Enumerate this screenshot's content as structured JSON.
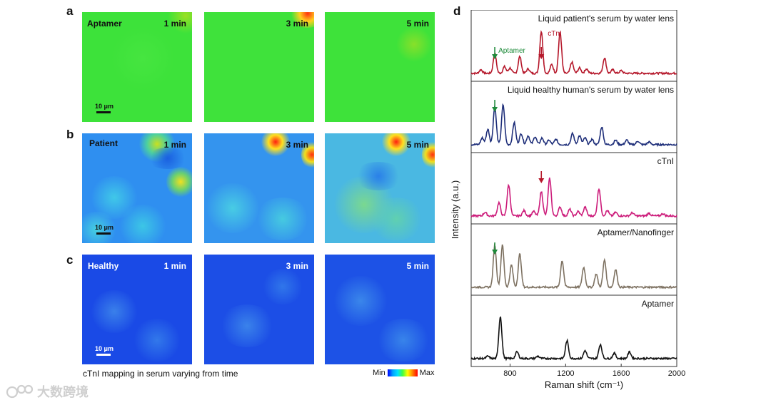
{
  "panels": {
    "a": {
      "letter": "a",
      "row_label": "Aptamer"
    },
    "b": {
      "letter": "b",
      "row_label": "Patient"
    },
    "c": {
      "letter": "c",
      "row_label": "Healthy"
    },
    "d": {
      "letter": "d"
    }
  },
  "times": [
    "1 min",
    "3 min",
    "5 min"
  ],
  "scale_bar": "10 μm",
  "caption": "cTnI mapping in serum varying from time",
  "colorbar": {
    "min_label": "Min",
    "max_label": "Max"
  },
  "watermark": "大数跨境",
  "colors": {
    "crimson": "#b5172a",
    "navy": "#1f2f7a",
    "magenta": "#cc1b7a",
    "taupe": "#7e7262",
    "black": "#111111",
    "green_arrow": "#1e8a3a"
  },
  "chart_data": {
    "type": "line",
    "xlabel": "Raman shift (cm⁻¹)",
    "ylabel": "Intensity (a.u.)",
    "xlim": [
      520,
      2000
    ],
    "xticks": [
      800,
      1200,
      1600,
      2000
    ],
    "series": [
      {
        "name": "Liquid patient's serum by water lens",
        "color": "#b5172a",
        "peaks": [
          [
            590,
            0.08
          ],
          [
            690,
            0.45
          ],
          [
            760,
            0.15
          ],
          [
            800,
            0.12
          ],
          [
            870,
            0.38
          ],
          [
            930,
            0.1
          ],
          [
            1025,
            0.95
          ],
          [
            1100,
            0.2
          ],
          [
            1160,
            0.93
          ],
          [
            1245,
            0.25
          ],
          [
            1300,
            0.12
          ],
          [
            1350,
            0.1
          ],
          [
            1480,
            0.35
          ],
          [
            1540,
            0.08
          ],
          [
            1600,
            0.06
          ]
        ],
        "annotations": [
          {
            "text": "Aptamer",
            "x": 690,
            "arrow": "green"
          },
          {
            "text": "cTnI",
            "x": 1025,
            "arrow": "crimson"
          }
        ]
      },
      {
        "name": "Liquid healthy human's serum by water lens",
        "color": "#1f2f7a",
        "peaks": [
          [
            600,
            0.15
          ],
          [
            640,
            0.35
          ],
          [
            690,
            0.85
          ],
          [
            750,
            0.9
          ],
          [
            830,
            0.5
          ],
          [
            880,
            0.25
          ],
          [
            930,
            0.2
          ],
          [
            980,
            0.18
          ],
          [
            1030,
            0.15
          ],
          [
            1080,
            0.1
          ],
          [
            1130,
            0.12
          ],
          [
            1250,
            0.25
          ],
          [
            1300,
            0.2
          ],
          [
            1340,
            0.15
          ],
          [
            1390,
            0.12
          ],
          [
            1460,
            0.4
          ],
          [
            1560,
            0.1
          ],
          [
            1640,
            0.1
          ],
          [
            1720,
            0.08
          ],
          [
            1800,
            0.06
          ]
        ],
        "annotations": [
          {
            "text": "",
            "x": 690,
            "arrow": "green"
          }
        ]
      },
      {
        "name": "cTnI",
        "color": "#cc1b7a",
        "peaks": [
          [
            620,
            0.08
          ],
          [
            720,
            0.3
          ],
          [
            790,
            0.7
          ],
          [
            900,
            0.12
          ],
          [
            970,
            0.1
          ],
          [
            1025,
            0.55
          ],
          [
            1085,
            0.85
          ],
          [
            1160,
            0.2
          ],
          [
            1230,
            0.15
          ],
          [
            1290,
            0.1
          ],
          [
            1340,
            0.2
          ],
          [
            1440,
            0.62
          ],
          [
            1500,
            0.12
          ],
          [
            1560,
            0.08
          ],
          [
            1680,
            0.07
          ],
          [
            1800,
            0.06
          ],
          [
            1900,
            0.05
          ]
        ],
        "annotations": [
          {
            "text": "",
            "x": 1025,
            "arrow": "crimson"
          }
        ]
      },
      {
        "name": "Aptamer/Nanofinger",
        "color": "#7e7262",
        "peaks": [
          [
            690,
            0.95
          ],
          [
            745,
            0.95
          ],
          [
            810,
            0.5
          ],
          [
            870,
            0.75
          ],
          [
            1175,
            0.6
          ],
          [
            1330,
            0.45
          ],
          [
            1420,
            0.3
          ],
          [
            1480,
            0.62
          ],
          [
            1560,
            0.4
          ]
        ],
        "annotations": [
          {
            "text": "",
            "x": 690,
            "arrow": "green"
          }
        ]
      },
      {
        "name": "Aptamer",
        "color": "#111111",
        "peaks": [
          [
            640,
            0.05
          ],
          [
            730,
            0.95
          ],
          [
            850,
            0.15
          ],
          [
            1000,
            0.05
          ],
          [
            1210,
            0.4
          ],
          [
            1340,
            0.18
          ],
          [
            1450,
            0.32
          ],
          [
            1550,
            0.12
          ],
          [
            1660,
            0.15
          ]
        ],
        "annotations": []
      }
    ]
  }
}
